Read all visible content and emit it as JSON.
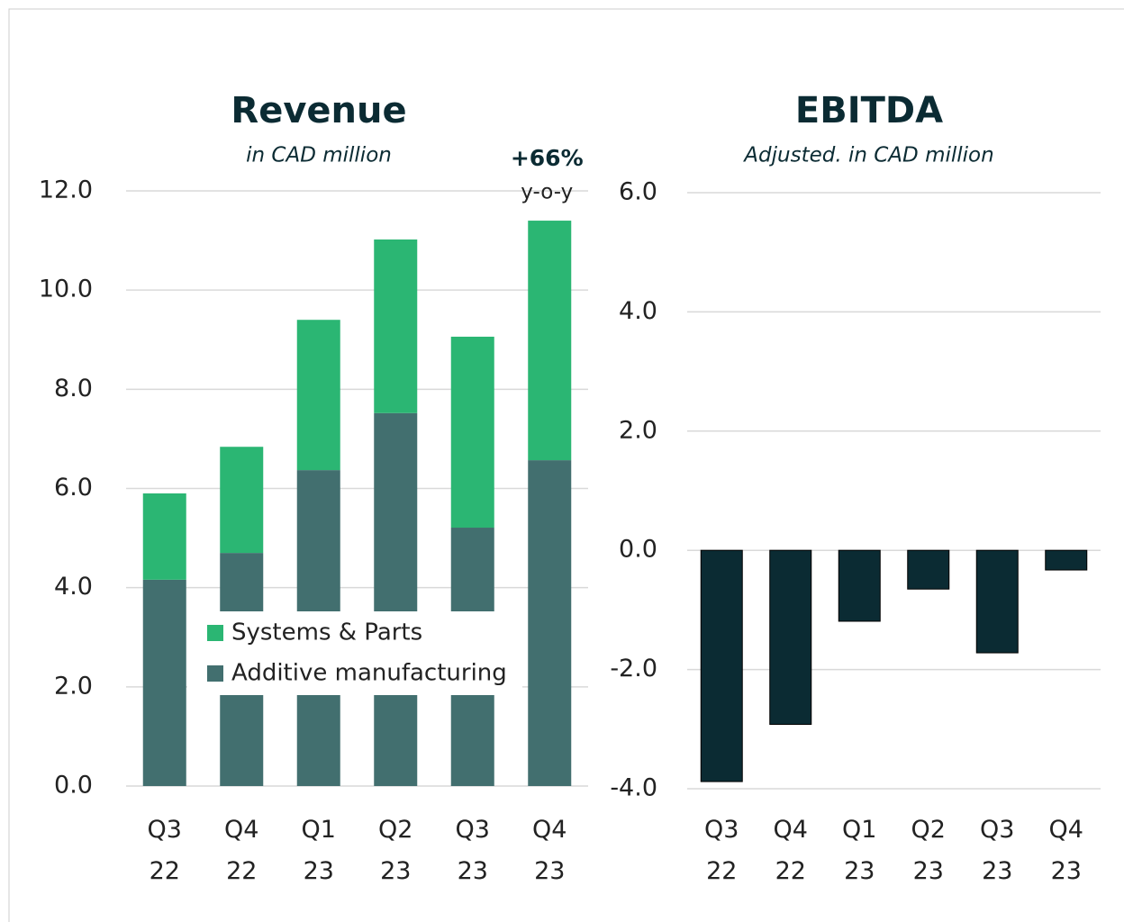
{
  "chart_data": [
    {
      "type": "stacked_bar",
      "title": "Revenue",
      "subtitle": "in CAD million",
      "annotation": {
        "text": "+66%",
        "subtext": "y-o-y"
      },
      "categories": [
        "Q3 22",
        "Q4 22",
        "Q1 23",
        "Q2 23",
        "Q3 23",
        "Q4 23"
      ],
      "series": [
        {
          "name": "Additive manufacturing",
          "color": "#426f6f",
          "values": [
            4.16,
            4.7,
            6.37,
            7.52,
            5.21,
            6.57
          ]
        },
        {
          "name": "Systems & Parts",
          "color": "#2bb673",
          "values": [
            1.74,
            2.14,
            3.03,
            3.5,
            3.85,
            4.83
          ]
        }
      ],
      "ylim": [
        0,
        12
      ],
      "yticks": [
        {
          "value": 0,
          "label": "0.0"
        },
        {
          "value": 2,
          "label": "2.0"
        },
        {
          "value": 4,
          "label": "4.0"
        },
        {
          "value": 6,
          "label": "6.0"
        },
        {
          "value": 8,
          "label": "8.0"
        },
        {
          "value": 10,
          "label": "10.0"
        },
        {
          "value": 12,
          "label": "12.0"
        }
      ],
      "grid": true,
      "legend": "lower center"
    },
    {
      "type": "bar",
      "title": "EBITDA",
      "subtitle": "Adjusted. in CAD million",
      "categories": [
        "Q3 22",
        "Q4 22",
        "Q1 23",
        "Q2 23",
        "Q3 23",
        "Q4 23"
      ],
      "values": [
        -3.88,
        -2.92,
        -1.19,
        -0.65,
        -1.72,
        -0.33
      ],
      "color": "#0b2b33",
      "ylim": [
        -4,
        6
      ],
      "yticks": [
        {
          "value": -4,
          "label": "-4.0"
        },
        {
          "value": -2,
          "label": "-2.0"
        },
        {
          "value": 0,
          "label": "0.0"
        },
        {
          "value": 2,
          "label": "2.0"
        },
        {
          "value": 4,
          "label": "4.0"
        },
        {
          "value": 6,
          "label": "6.0"
        }
      ],
      "grid": true
    }
  ]
}
